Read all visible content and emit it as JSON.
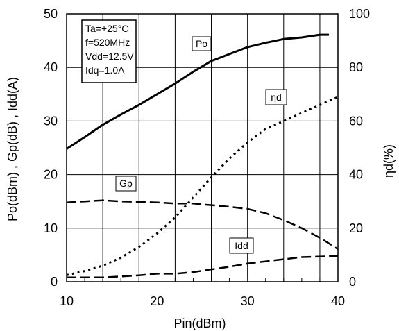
{
  "chart_data": {
    "type": "line",
    "xlabel": "Pin(dBm)",
    "ylabel_left": "Po(dBm) , Gp(dB) , Idd(A)",
    "ylabel_right": "ηd(%)",
    "xlim": [
      10,
      40
    ],
    "ylim_left": [
      0,
      50
    ],
    "ylim_right": [
      0,
      100
    ],
    "x_ticks": [
      10,
      20,
      30,
      40
    ],
    "x_minor_ticks": [
      12,
      14,
      16,
      18,
      22,
      24,
      26,
      28,
      32,
      34,
      36,
      38
    ],
    "y_left_ticks": [
      0,
      10,
      20,
      30,
      40,
      50
    ],
    "y_right_ticks": [
      0,
      20,
      40,
      60,
      80,
      100
    ],
    "grid": true,
    "conditions": [
      "Ta=+25°C",
      "f=520MHz",
      "Vdd=12.5V",
      "Idq=1.0A"
    ],
    "series": [
      {
        "name": "Po",
        "axis": "left",
        "style": "solid",
        "x": [
          10,
          12,
          14,
          16,
          18,
          20,
          22,
          24,
          26,
          28,
          30,
          32,
          34,
          36,
          38,
          39
        ],
        "values": [
          24.8,
          27,
          29.3,
          31.2,
          33,
          35,
          37,
          39.2,
          41.2,
          42.5,
          43.8,
          44.6,
          45.3,
          45.6,
          46.1,
          46.1
        ]
      },
      {
        "name": "Gp",
        "axis": "left",
        "style": "dashed",
        "x": [
          10,
          12,
          14,
          16,
          18,
          20,
          22,
          24,
          26,
          28,
          30,
          32,
          34,
          36,
          38,
          40
        ],
        "values": [
          14.8,
          15,
          15.2,
          15,
          14.9,
          14.8,
          14.6,
          14.6,
          14.3,
          14,
          13.6,
          12.8,
          11.5,
          10,
          8.2,
          6.1
        ]
      },
      {
        "name": "Idd",
        "axis": "left",
        "style": "dashed",
        "x": [
          10,
          12,
          14,
          16,
          18,
          20,
          22,
          24,
          26,
          28,
          30,
          32,
          34,
          36,
          38,
          40
        ],
        "values": [
          0.8,
          0.8,
          0.8,
          1.0,
          1.2,
          1.5,
          1.5,
          1.8,
          2.3,
          2.8,
          3.4,
          3.8,
          4.2,
          4.6,
          4.7,
          4.8
        ]
      },
      {
        "name": "ηd",
        "axis": "right",
        "style": "dotted",
        "x": [
          10,
          12,
          14,
          16,
          18,
          20,
          22,
          24,
          26,
          28,
          30,
          32,
          34,
          36,
          38,
          40
        ],
        "values": [
          2.5,
          4,
          6,
          9,
          13,
          18,
          24,
          31.5,
          39,
          46,
          52,
          57,
          60,
          63,
          66,
          69
        ]
      }
    ]
  }
}
